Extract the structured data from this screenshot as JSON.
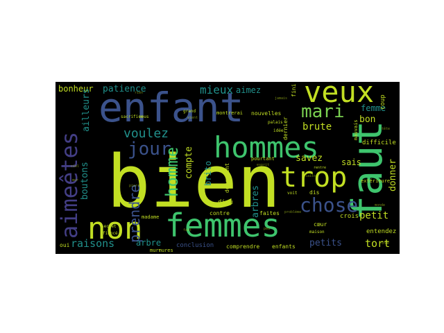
{
  "palette": {
    "yellow_green": "#c2df23",
    "green": "#3ec46d",
    "teal": "#21918c",
    "blue": "#3b528b",
    "purple": "#433e85",
    "dark_purple": "#472d7b",
    "light_green": "#7ad151"
  },
  "words": {
    "bien": "bien",
    "enfant": "enfant",
    "faut": "faut",
    "femmes": "femmes",
    "hommes": "hommes",
    "veux": "veux",
    "non": "non",
    "aimeetes": "aimeêtes",
    "trop": "trop",
    "chose": "chose",
    "mari": "mari",
    "jour": "jour",
    "homme": "homme",
    "prendre": "prendre",
    "mieux": "mieux",
    "raisons": "raisons",
    "voulez": "voulez",
    "bonheur": "bonheur",
    "patience": "patience",
    "aimez": "aimez",
    "femme": "femme",
    "bon": "bon",
    "brute": "brute",
    "savez": "savez",
    "sais": "sais",
    "compte": "compte",
    "ailleurs": "ailleurs",
    "boutons": "boutons",
    "petit": "petit",
    "petits": "petits",
    "arbres": "arbres",
    "arbre": "arbre",
    "tort": "tort",
    "donner": "donner",
    "difficile": "difficile",
    "entendez": "entendez",
    "brito": "brito",
    "dieu": "dieu",
    "contre": "contre",
    "faites": "faites",
    "coeur": "cœur",
    "crois": "crois",
    "conclusion": "conclusion",
    "comprendre": "comprendre",
    "enfants": "enfants",
    "nouvelles": "nouvelles",
    "pourtant": "pourtant",
    "montrerai": "montrerai",
    "dernier": "dernier",
    "devraient": "devraient",
    "coup": "coup",
    "fini": "fini",
    "oui": "oui",
    "madame": "madame",
    "murmures": "murmures",
    "sacrifice": "sacrifice",
    "maison": "maison",
    "mauvais": "mauvais",
    "exterieure": "extérieure",
    "dis": "dis",
    "voit": "voit",
    "idee": "idée",
    "palais": "palais",
    "grand": "grand",
    "vous": "vous",
    "secret": "secret",
    "fiance": "fiancé",
    "rentre": "rentre",
    "monde": "monde",
    "laisse": "laisse",
    "pierre": "pierre",
    "probleme": "problème",
    "ose": "ose",
    "vient": "vient",
    "rien": "rien",
    "jamais": "jamais",
    "esprit": "esprit",
    "ciel": "ciel",
    "mur": "mur",
    "fait": "fait",
    "tete": "tête",
    "peu": "peu"
  }
}
